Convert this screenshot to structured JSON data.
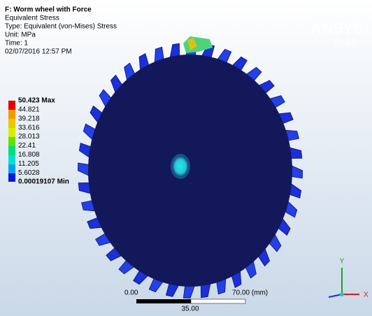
{
  "header": {
    "title": "F: Worm wheel with Force",
    "lines": [
      "Equivalent Stress",
      "Type: Equivalent (von-Mises) Stress",
      "Unit: MPa",
      "Time: 1",
      "02/07/2016 12:57 PM"
    ]
  },
  "logo": {
    "name": "ANSYS",
    "release": "R15.0"
  },
  "legend": {
    "labels": [
      "50.423 Max",
      "44.821",
      "39.218",
      "33.616",
      "28.013",
      "22.41",
      "16.808",
      "11.205",
      "5.6028",
      "0.00019107 Min"
    ]
  },
  "scale_bar": {
    "start": "0.00",
    "end": "70.00 (mm)",
    "middle": "35.00"
  },
  "triad": {
    "y": "Y",
    "x": "X"
  }
}
